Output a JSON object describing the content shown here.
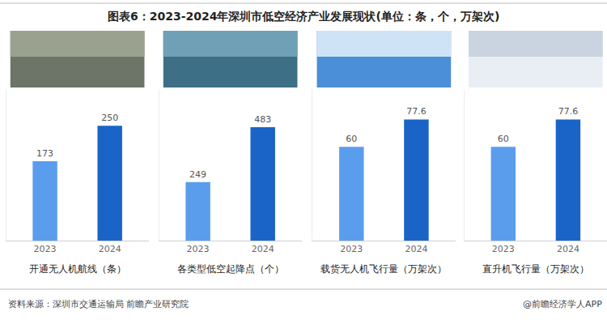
{
  "title": "图表6：2023-2024年深圳市低空经济产业发展现状(单位：条，个，万架次)",
  "source": "资料来源：深圳市交通运输局 前瞻产业研究院",
  "credit": "@前瞻经济学人APP",
  "chart_data": [
    {
      "type": "bar",
      "xlabel": "开通无人机航线（条）",
      "categories": [
        "2023",
        "2024"
      ],
      "values": [
        173,
        250
      ],
      "colors": [
        "#5b9ded",
        "#1a64c8"
      ],
      "ylim": [
        0,
        330
      ],
      "data_labels": true,
      "tick_labels": "x",
      "grid": false
    },
    {
      "type": "bar",
      "xlabel": "各类型低空起降点（个）",
      "categories": [
        "2023",
        "2024"
      ],
      "values": [
        249,
        483
      ],
      "colors": [
        "#5b9ded",
        "#1a64c8"
      ],
      "ylim": [
        0,
        645
      ],
      "data_labels": true,
      "tick_labels": "x",
      "grid": false
    },
    {
      "type": "bar",
      "xlabel": "载货无人机飞行量（万架次）",
      "categories": [
        "2023",
        "2024"
      ],
      "values": [
        60,
        77.6
      ],
      "colors": [
        "#5b9ded",
        "#1a64c8"
      ],
      "ylim": [
        0,
        97
      ],
      "data_labels": true,
      "tick_labels": "x",
      "grid": false
    },
    {
      "type": "bar",
      "xlabel": "直升机飞行量（万架次）",
      "categories": [
        "2023",
        "2024"
      ],
      "values": [
        60,
        77.6
      ],
      "colors": [
        "#5b9ded",
        "#1a64c8"
      ],
      "ylim": [
        0,
        97
      ],
      "data_labels": true,
      "tick_labels": "x",
      "grid": false
    }
  ]
}
